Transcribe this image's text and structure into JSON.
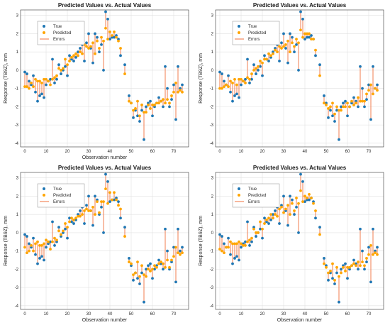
{
  "colors": {
    "true": "#1f77b4",
    "predicted": "#ffa500",
    "errors": "#f0703c",
    "grid": "#e0e0e0",
    "axis": "#333333"
  },
  "chart_data": [
    {
      "type": "scatter",
      "title": "Predicted Values vs. Actual Values",
      "xlabel": "Observation number",
      "ylabel": "Response (TB9Z), mm",
      "xlim": [
        -2,
        77
      ],
      "ylim": [
        -4.2,
        3.3
      ],
      "xticks": [
        0,
        10,
        20,
        30,
        40,
        50,
        60,
        70
      ],
      "yticks": [
        -4,
        -3,
        -2,
        -1,
        0,
        1,
        2,
        3
      ],
      "grid": true,
      "legend_position": "top-left",
      "legend": [
        "True",
        "Predicted",
        "Errors"
      ],
      "series": [
        {
          "name": "True",
          "values": [
            -0.1,
            -0.2,
            -0.6,
            -0.8,
            -0.3,
            -1.2,
            -1.7,
            -1.4,
            -1.3,
            -1.5,
            -0.8,
            -0.6,
            -0.5,
            0.6,
            -0.7,
            -0.5,
            0.3,
            -0.2,
            0.0,
            0.2,
            -0.3,
            0.8,
            0.6,
            0.5,
            0.7,
            1.0,
            1.2,
            1.4,
            0.5,
            1.5,
            2.0,
            1.2,
            0.4,
            2.0,
            1.8,
            1.0,
            1.4,
            0.0,
            3.2,
            2.8,
            1.7,
            1.8,
            1.8,
            1.9,
            1.7,
            0.8,
            null,
            0.3,
            null,
            -1.4,
            -1.8,
            -2.6,
            -2.2,
            -2.5,
            -2.8,
            -2.2,
            -3.8,
            -2.0,
            -1.8,
            -1.7,
            -2.5,
            -2.0,
            -1.8,
            -1.5,
            -1.7,
            -2.0,
            0.2,
            -1.0,
            -2.0,
            -1.6,
            -0.8,
            -2.7,
            0.2,
            -1.0,
            -0.8
          ]
        },
        {
          "name": "Predicted",
          "values": [
            -0.9,
            -0.9,
            -1.0,
            -0.7,
            -0.9,
            -0.5,
            -0.6,
            -0.6,
            -0.7,
            -0.5,
            -0.5,
            -0.6,
            -0.8,
            -0.5,
            -0.4,
            -0.3,
            0.1,
            0.0,
            0.1,
            0.6,
            0.3,
            0.5,
            0.7,
            0.8,
            0.9,
            0.8,
            1.0,
            0.9,
            1.4,
            1.3,
            1.2,
            1.3,
            1.5,
            0.9,
            1.6,
            1.2,
            1.8,
            1.6,
            2.3,
            1.7,
            2.1,
            1.9,
            2.1,
            1.8,
            1.6,
            1.2,
            null,
            -0.2,
            null,
            -1.7,
            -1.8,
            -2.2,
            -2.1,
            -1.7,
            -2.5,
            -1.9,
            -2.3,
            -2.3,
            -1.9,
            -2.1,
            -1.9,
            -1.9,
            -1.8,
            -1.8,
            -1.7,
            -1.6,
            -1.8,
            -1.6,
            -1.8,
            -1.4,
            -1.2,
            -0.7,
            -1.2,
            -1.1,
            -1.2
          ]
        }
      ]
    },
    {
      "type": "scatter",
      "title": "Predicted Values vs. Actual Values",
      "xlabel": "",
      "ylabel": "Response (TB9Z), mm",
      "xlim": [
        -2,
        77
      ],
      "ylim": [
        -4.2,
        3.3
      ],
      "xticks": [
        0,
        10,
        20,
        30,
        40,
        50,
        60,
        70
      ],
      "yticks": [
        -4,
        -3,
        -2,
        -1,
        0,
        1,
        2,
        3
      ],
      "grid": true,
      "legend_position": "top-left",
      "legend": [
        "True",
        "Predicted",
        "Errors"
      ],
      "series": [
        {
          "name": "True",
          "values": [
            -0.1,
            -0.2,
            -0.6,
            -0.8,
            -0.3,
            -1.2,
            -1.7,
            -1.4,
            -1.3,
            -1.5,
            -0.8,
            -0.6,
            -0.5,
            0.6,
            -0.7,
            -0.5,
            0.3,
            -0.2,
            0.0,
            0.2,
            -0.3,
            0.8,
            0.6,
            0.5,
            0.7,
            1.0,
            1.2,
            1.4,
            0.5,
            1.5,
            2.0,
            1.2,
            0.4,
            2.0,
            1.8,
            1.0,
            1.4,
            0.0,
            3.2,
            2.8,
            1.7,
            1.8,
            1.8,
            1.9,
            1.7,
            0.8,
            null,
            0.3,
            null,
            -1.4,
            -1.8,
            -2.6,
            -2.2,
            -2.5,
            -2.8,
            -2.2,
            -3.8,
            -2.0,
            -1.8,
            -1.7,
            -2.5,
            -2.0,
            -1.8,
            -1.5,
            -1.7,
            -2.0,
            0.2,
            -1.0,
            -2.0,
            -1.6,
            -0.8,
            -2.7,
            0.2,
            -1.0,
            -0.8
          ]
        },
        {
          "name": "Predicted",
          "values": [
            -1.0,
            -1.0,
            -0.9,
            -0.8,
            -0.9,
            -0.6,
            -0.7,
            -0.5,
            -0.8,
            -0.5,
            -0.5,
            -0.6,
            -0.7,
            -0.4,
            -0.5,
            -0.2,
            0.0,
            0.1,
            0.2,
            0.5,
            0.4,
            0.6,
            0.6,
            0.9,
            0.8,
            0.9,
            1.1,
            1.0,
            1.3,
            1.2,
            1.3,
            1.4,
            1.6,
            1.0,
            1.5,
            1.3,
            1.7,
            1.5,
            2.2,
            1.8,
            2.0,
            2.0,
            2.0,
            1.7,
            1.7,
            1.1,
            null,
            -0.3,
            null,
            -1.8,
            -1.9,
            -2.1,
            -2.0,
            -1.8,
            -2.4,
            -2.0,
            -2.2,
            -2.2,
            -2.0,
            -2.0,
            -1.8,
            -2.0,
            -1.7,
            -1.9,
            -1.8,
            -1.5,
            -1.7,
            -1.7,
            -1.7,
            -1.3,
            -1.1,
            -0.8,
            -1.3,
            -1.0,
            -1.1
          ]
        }
      ]
    },
    {
      "type": "scatter",
      "title": "Predicted Values vs. Actual Values",
      "xlabel": "Observation number",
      "ylabel": "Response (TB9Z), mm",
      "xlim": [
        -2,
        77
      ],
      "ylim": [
        -4.2,
        3.3
      ],
      "xticks": [
        0,
        10,
        20,
        30,
        40,
        50,
        60,
        70
      ],
      "yticks": [
        -4,
        -3,
        -2,
        -1,
        0,
        1,
        2,
        3
      ],
      "grid": true,
      "legend_position": "top-left",
      "legend": [
        "True",
        "Predicted",
        "Errors"
      ],
      "series": [
        {
          "name": "True",
          "values": [
            -0.1,
            -0.2,
            -0.6,
            -0.8,
            -0.3,
            -1.2,
            -1.7,
            -1.4,
            -1.3,
            -1.5,
            -0.8,
            -0.6,
            -0.5,
            0.6,
            -0.7,
            -0.5,
            0.3,
            -0.2,
            0.0,
            0.2,
            -0.3,
            0.8,
            0.6,
            0.5,
            0.7,
            1.0,
            1.2,
            1.4,
            0.5,
            1.5,
            2.0,
            1.2,
            0.4,
            2.0,
            1.8,
            1.0,
            1.4,
            0.0,
            3.2,
            2.8,
            1.7,
            1.8,
            1.8,
            1.9,
            1.7,
            0.8,
            null,
            0.3,
            null,
            -1.4,
            -1.8,
            -2.6,
            -2.2,
            -2.5,
            -2.8,
            -2.2,
            -3.8,
            -2.0,
            -1.8,
            -1.7,
            -2.5,
            -2.0,
            -1.8,
            -1.5,
            -1.7,
            -2.0,
            0.2,
            -1.0,
            -2.0,
            -1.6,
            -0.8,
            -2.7,
            0.2,
            -1.0,
            -0.8
          ]
        },
        {
          "name": "Predicted",
          "values": [
            -0.8,
            -1.1,
            -1.0,
            -0.7,
            -1.0,
            -0.6,
            -0.5,
            -0.7,
            -0.7,
            -0.6,
            -0.4,
            -0.5,
            -0.9,
            -0.5,
            -0.3,
            -0.4,
            0.1,
            -0.1,
            0.1,
            0.5,
            0.3,
            0.6,
            0.8,
            0.7,
            0.8,
            0.9,
            0.9,
            1.0,
            1.2,
            1.3,
            1.2,
            1.2,
            1.4,
            1.0,
            1.7,
            1.1,
            1.7,
            1.7,
            2.4,
            1.6,
            2.2,
            1.8,
            2.2,
            1.8,
            1.5,
            1.3,
            null,
            -0.2,
            null,
            -1.6,
            -1.7,
            -2.3,
            -2.2,
            -1.6,
            -2.4,
            -1.8,
            -2.3,
            -2.4,
            -2.0,
            -2.1,
            -2.0,
            -1.8,
            -1.9,
            -1.7,
            -1.6,
            -1.7,
            -1.9,
            -1.5,
            -1.9,
            -1.5,
            -1.3,
            -0.8,
            -1.1,
            -1.2,
            -1.1
          ]
        }
      ]
    },
    {
      "type": "scatter",
      "title": "Predicted Values vs. Actual Values",
      "xlabel": "Observation number",
      "ylabel": "Response (TB9Z), mm",
      "xlim": [
        -2,
        77
      ],
      "ylim": [
        -4.2,
        3.3
      ],
      "xticks": [
        0,
        10,
        20,
        30,
        40,
        50,
        60,
        70
      ],
      "yticks": [
        -4,
        -3,
        -2,
        -1,
        0,
        1,
        2,
        3
      ],
      "grid": true,
      "legend_position": "top-left",
      "legend": [
        "True",
        "Predicted",
        "Errors"
      ],
      "series": [
        {
          "name": "True",
          "values": [
            -0.1,
            -0.2,
            -0.6,
            -0.8,
            -0.3,
            -1.2,
            -1.7,
            -1.4,
            -1.3,
            -1.5,
            -0.8,
            -0.6,
            -0.5,
            0.6,
            -0.7,
            -0.5,
            0.3,
            -0.2,
            0.0,
            0.2,
            -0.3,
            0.8,
            0.6,
            0.5,
            0.7,
            1.0,
            1.2,
            1.4,
            0.5,
            1.5,
            2.0,
            1.2,
            0.4,
            2.0,
            1.8,
            1.0,
            1.4,
            0.0,
            3.2,
            2.8,
            1.7,
            1.8,
            1.8,
            1.9,
            1.7,
            0.8,
            null,
            0.3,
            null,
            -1.4,
            -1.8,
            -2.6,
            -2.2,
            -2.5,
            -2.8,
            -2.2,
            -3.8,
            -2.0,
            -1.8,
            -1.7,
            -2.5,
            -2.0,
            -1.8,
            -1.5,
            -1.7,
            -2.0,
            0.2,
            -1.0,
            -2.0,
            -1.6,
            -0.8,
            -2.7,
            0.2,
            -1.0,
            -0.8
          ]
        },
        {
          "name": "Predicted",
          "values": [
            -0.9,
            -1.0,
            -1.1,
            -0.8,
            -0.8,
            -0.5,
            -0.6,
            -0.6,
            -0.6,
            -0.5,
            -0.6,
            -0.7,
            -0.7,
            -0.5,
            -0.4,
            -0.3,
            0.2,
            0.0,
            0.0,
            0.6,
            0.2,
            0.5,
            0.7,
            0.8,
            1.0,
            0.8,
            1.0,
            0.9,
            1.3,
            1.4,
            1.1,
            1.3,
            1.5,
            1.0,
            1.6,
            1.2,
            1.9,
            1.6,
            2.3,
            1.7,
            2.0,
            1.9,
            2.1,
            1.9,
            1.6,
            1.2,
            null,
            -0.1,
            null,
            -1.7,
            -1.9,
            -2.2,
            -2.1,
            -1.7,
            -2.6,
            -1.9,
            -2.4,
            -2.2,
            -1.9,
            -2.1,
            -1.9,
            -1.9,
            -1.8,
            -1.7,
            -1.8,
            -1.6,
            -1.8,
            -1.6,
            -1.8,
            -1.4,
            -1.2,
            -0.7,
            -1.2,
            -1.1,
            -1.2
          ]
        }
      ]
    }
  ]
}
